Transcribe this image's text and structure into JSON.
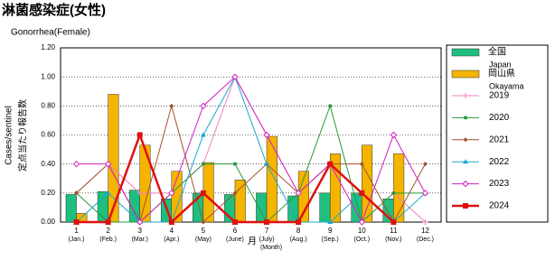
{
  "chart_data": {
    "type": "bar",
    "title": "淋菌感染症(女性)",
    "subtitle": "Gonorrhea(Female)",
    "y_label": "Cases/sentinel",
    "y_label_ja": "定点当たり報告数",
    "x_label": "月",
    "x_label_en": "(Month)",
    "categories": [
      "1",
      "2",
      "3",
      "4",
      "5",
      "6",
      "7",
      "8",
      "9",
      "10",
      "11",
      "12"
    ],
    "categories_en": [
      "(Jan.)",
      "(Feb.)",
      "(Mar.)",
      "(Apr.)",
      "(May)",
      "(June)",
      "(July)",
      "(Aug.)",
      "(Sep.)",
      "(Oct.)",
      "(Nov.)",
      "(Dec.)"
    ],
    "ylim": [
      0,
      1.2
    ],
    "yticks": [
      {
        "value": 0,
        "label": "0.00"
      },
      {
        "value": 0.2,
        "label": "0.20"
      },
      {
        "value": 0.4,
        "label": "0.40"
      },
      {
        "value": 0.6,
        "label": "0.60"
      },
      {
        "value": 0.8,
        "label": "0.80"
      },
      {
        "value": 1.0,
        "label": "1.00"
      },
      {
        "value": 1.2,
        "label": "1.20"
      }
    ],
    "grid": true,
    "series": [
      {
        "name": "全国",
        "name_en": "Japan",
        "kind": "bar",
        "color": "#1fbf7f",
        "values": [
          0.19,
          0.21,
          0.22,
          0.16,
          0.2,
          0.19,
          0.2,
          0.18,
          0.2,
          0.2,
          0.16,
          null
        ]
      },
      {
        "name": "岡山県",
        "name_en": "Okayama",
        "kind": "bar",
        "color": "#f5b400",
        "values": [
          0.06,
          0.88,
          0.53,
          0.35,
          0.41,
          0.29,
          0.59,
          0.35,
          0.47,
          0.53,
          0.47,
          null
        ]
      },
      {
        "name": "2019",
        "kind": "line",
        "marker": "plus",
        "color": "#f080c0",
        "values": [
          0.2,
          0.4,
          0.2,
          0.2,
          0.4,
          1.0,
          0.6,
          0.2,
          0.4,
          0,
          0.2,
          0
        ]
      },
      {
        "name": "2020",
        "kind": "line",
        "marker": "circle",
        "color": "#2a9a3a",
        "values": [
          0.2,
          0,
          0,
          0.2,
          0.4,
          0.4,
          0,
          0.2,
          0.8,
          0,
          0.2,
          0.2
        ]
      },
      {
        "name": "2021",
        "kind": "line",
        "marker": "diamond",
        "color": "#a0522d",
        "values": [
          0.2,
          0.4,
          0,
          0.8,
          0,
          0.2,
          0.4,
          0.2,
          0.4,
          0.4,
          0,
          0.4
        ]
      },
      {
        "name": "2022",
        "kind": "line",
        "marker": "triangle",
        "color": "#1aa7d0",
        "values": [
          0,
          0.2,
          0,
          0,
          0.6,
          1.0,
          0.4,
          0,
          0,
          0.2,
          0,
          0.2
        ]
      },
      {
        "name": "2023",
        "kind": "line",
        "marker": "open-diamond",
        "color": "#d020c0",
        "values": [
          0.4,
          0.4,
          0,
          0.2,
          0.8,
          1.0,
          0.6,
          0.2,
          0.4,
          0,
          0.6,
          0.2
        ]
      },
      {
        "name": "2024",
        "kind": "line",
        "marker": "square",
        "color": "#e01010",
        "values": [
          0,
          0,
          0.6,
          0,
          0.2,
          0,
          0,
          0,
          0.4,
          0.2,
          0,
          null
        ]
      }
    ]
  }
}
